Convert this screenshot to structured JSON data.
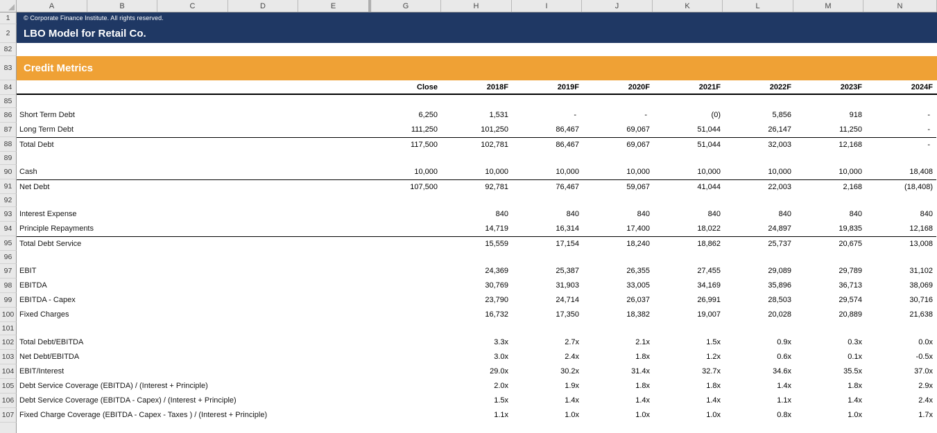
{
  "workbook": {
    "copyright": "© Corporate Finance Institute. All rights reserved.",
    "title": "LBO Model for Retail Co.",
    "section_title": "Credit Metrics"
  },
  "colors": {
    "navy_band": "#1f3864",
    "orange_band": "#efa135",
    "header_gray": "#e9e9e9",
    "text_white": "#ffffff",
    "text_black": "#000000"
  },
  "grid": {
    "column_letters": [
      "A",
      "B",
      "C",
      "D",
      "E",
      "G",
      "H",
      "I",
      "J",
      "K",
      "L",
      "M",
      "N"
    ],
    "hidden_column": "F"
  },
  "table": {
    "column_headers": [
      "Close",
      "2018F",
      "2019F",
      "2020F",
      "2021F",
      "2022F",
      "2023F",
      "2024F"
    ],
    "rows": [
      {
        "num": "1",
        "kind": "copyright"
      },
      {
        "num": "2",
        "kind": "title"
      },
      {
        "num": "82",
        "kind": "blank"
      },
      {
        "num": "83",
        "kind": "section"
      },
      {
        "num": "84",
        "kind": "header"
      },
      {
        "num": "85",
        "kind": "spacer"
      },
      {
        "num": "86",
        "kind": "data",
        "label": "Short Term Debt",
        "values": [
          "6,250",
          "1,531",
          "-",
          "-",
          "(0)",
          "5,856",
          "918",
          "-"
        ]
      },
      {
        "num": "87",
        "kind": "data",
        "label": "Long Term Debt",
        "values": [
          "111,250",
          "101,250",
          "86,467",
          "69,067",
          "51,044",
          "26,147",
          "11,250",
          "-"
        ]
      },
      {
        "num": "88",
        "kind": "total",
        "label": "Total Debt",
        "values": [
          "117,500",
          "102,781",
          "86,467",
          "69,067",
          "51,044",
          "32,003",
          "12,168",
          "-"
        ]
      },
      {
        "num": "89",
        "kind": "spacer"
      },
      {
        "num": "90",
        "kind": "data",
        "label": "Cash",
        "values": [
          "10,000",
          "10,000",
          "10,000",
          "10,000",
          "10,000",
          "10,000",
          "10,000",
          "18,408"
        ]
      },
      {
        "num": "91",
        "kind": "total",
        "label": "Net Debt",
        "values": [
          "107,500",
          "92,781",
          "76,467",
          "59,067",
          "41,044",
          "22,003",
          "2,168",
          "(18,408)"
        ]
      },
      {
        "num": "92",
        "kind": "spacer"
      },
      {
        "num": "93",
        "kind": "data",
        "label": "Interest Expense",
        "values": [
          "",
          "840",
          "840",
          "840",
          "840",
          "840",
          "840",
          "840"
        ]
      },
      {
        "num": "94",
        "kind": "data",
        "label": "Principle Repayments",
        "values": [
          "",
          "14,719",
          "16,314",
          "17,400",
          "18,022",
          "24,897",
          "19,835",
          "12,168"
        ]
      },
      {
        "num": "95",
        "kind": "total",
        "label": "Total Debt Service",
        "values": [
          "",
          "15,559",
          "17,154",
          "18,240",
          "18,862",
          "25,737",
          "20,675",
          "13,008"
        ]
      },
      {
        "num": "96",
        "kind": "spacer"
      },
      {
        "num": "97",
        "kind": "data",
        "label": "EBIT",
        "values": [
          "",
          "24,369",
          "25,387",
          "26,355",
          "27,455",
          "29,089",
          "29,789",
          "31,102"
        ]
      },
      {
        "num": "98",
        "kind": "data",
        "label": "EBITDA",
        "values": [
          "",
          "30,769",
          "31,903",
          "33,005",
          "34,169",
          "35,896",
          "36,713",
          "38,069"
        ]
      },
      {
        "num": "99",
        "kind": "data",
        "label": "EBITDA - Capex",
        "values": [
          "",
          "23,790",
          "24,714",
          "26,037",
          "26,991",
          "28,503",
          "29,574",
          "30,716"
        ]
      },
      {
        "num": "100",
        "kind": "data",
        "label": "Fixed Charges",
        "values": [
          "",
          "16,732",
          "17,350",
          "18,382",
          "19,007",
          "20,028",
          "20,889",
          "21,638"
        ]
      },
      {
        "num": "101",
        "kind": "spacer"
      },
      {
        "num": "102",
        "kind": "data",
        "label": "Total Debt/EBITDA",
        "values": [
          "",
          "3.3x",
          "2.7x",
          "2.1x",
          "1.5x",
          "0.9x",
          "0.3x",
          "0.0x"
        ]
      },
      {
        "num": "103",
        "kind": "data",
        "label": "Net Debt/EBITDA",
        "values": [
          "",
          "3.0x",
          "2.4x",
          "1.8x",
          "1.2x",
          "0.6x",
          "0.1x",
          "-0.5x"
        ]
      },
      {
        "num": "104",
        "kind": "data",
        "label": "EBIT/Interest",
        "values": [
          "",
          "29.0x",
          "30.2x",
          "31.4x",
          "32.7x",
          "34.6x",
          "35.5x",
          "37.0x"
        ]
      },
      {
        "num": "105",
        "kind": "data",
        "label": "Debt Service Coverage (EBITDA) / (Interest + Principle)",
        "values": [
          "",
          "2.0x",
          "1.9x",
          "1.8x",
          "1.8x",
          "1.4x",
          "1.8x",
          "2.9x"
        ]
      },
      {
        "num": "106",
        "kind": "data",
        "label": "Debt Service Coverage (EBITDA - Capex) / (Interest + Principle)",
        "values": [
          "",
          "1.5x",
          "1.4x",
          "1.4x",
          "1.4x",
          "1.1x",
          "1.4x",
          "2.4x"
        ]
      },
      {
        "num": "107",
        "kind": "data",
        "label": "Fixed Charge Coverage (EBITDA - Capex - Taxes ) / (Interest + Principle)",
        "values": [
          "",
          "1.1x",
          "1.0x",
          "1.0x",
          "1.0x",
          "0.8x",
          "1.0x",
          "1.7x"
        ]
      }
    ]
  }
}
